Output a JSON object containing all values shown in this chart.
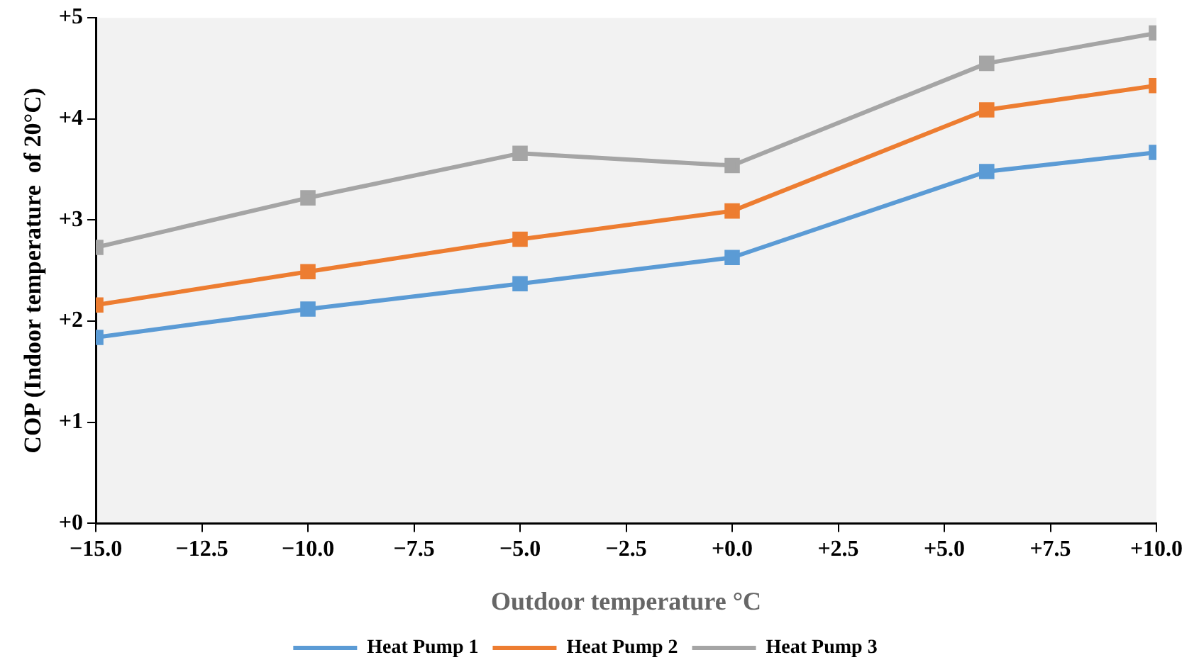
{
  "chart_data": {
    "type": "line",
    "xlabel": "Outdoor temperature °C",
    "ylabel": "COP (Indoor temperature  of 20°C)",
    "x": [
      -15,
      -10,
      -5,
      0,
      6,
      10
    ],
    "series": [
      {
        "name": "Heat Pump 1",
        "color": "#5b9bd5",
        "values": [
          1.84,
          2.12,
          2.37,
          2.63,
          3.48,
          3.67
        ]
      },
      {
        "name": "Heat Pump 2",
        "color": "#ed7d31",
        "values": [
          2.16,
          2.49,
          2.81,
          3.09,
          4.09,
          4.33
        ]
      },
      {
        "name": "Heat Pump 3",
        "color": "#a5a5a5",
        "values": [
          2.73,
          3.22,
          3.66,
          3.54,
          4.55,
          4.85
        ]
      }
    ],
    "xlim": [
      -15,
      10
    ],
    "xticks": [
      {
        "value": -15,
        "label": "−15.0"
      },
      {
        "value": -12.5,
        "label": "−12.5"
      },
      {
        "value": -10,
        "label": "−10.0"
      },
      {
        "value": -7.5,
        "label": "−7.5"
      },
      {
        "value": -5,
        "label": "−5.0"
      },
      {
        "value": -2.5,
        "label": "−2.5"
      },
      {
        "value": 0,
        "label": "+0.0"
      },
      {
        "value": 2.5,
        "label": "+2.5"
      },
      {
        "value": 5,
        "label": "+5.0"
      },
      {
        "value": 7.5,
        "label": "+7.5"
      },
      {
        "value": 10,
        "label": "+10.0"
      }
    ],
    "ylim": [
      0,
      5
    ],
    "yticks": [
      {
        "value": 0,
        "label": "+0"
      },
      {
        "value": 1,
        "label": "+1"
      },
      {
        "value": 2,
        "label": "+2"
      },
      {
        "value": 3,
        "label": "+3"
      },
      {
        "value": 4,
        "label": "+4"
      },
      {
        "value": 5,
        "label": "+5"
      }
    ],
    "grid": false,
    "legend": "bottom",
    "marker": "square",
    "line_style": "solid"
  }
}
